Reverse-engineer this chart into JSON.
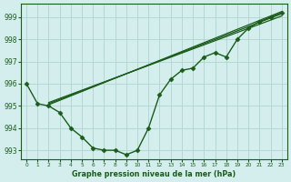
{
  "title": "Graphe pression niveau de la mer (hPa)",
  "background_color": "#d4eeed",
  "grid_color": "#b0d4d0",
  "line_color": "#1a5c1a",
  "xlim": [
    -0.5,
    23.5
  ],
  "ylim": [
    992.6,
    999.6
  ],
  "yticks": [
    993,
    994,
    995,
    996,
    997,
    998,
    999
  ],
  "xticks": [
    0,
    1,
    2,
    3,
    4,
    5,
    6,
    7,
    8,
    9,
    10,
    11,
    12,
    13,
    14,
    15,
    16,
    17,
    18,
    19,
    20,
    21,
    22,
    23
  ],
  "lines": [
    {
      "x": [
        0,
        1,
        2,
        3,
        4,
        5,
        6,
        7,
        8,
        9,
        10,
        11,
        12,
        13,
        14,
        15,
        16,
        17,
        18,
        19,
        20,
        21,
        22,
        23
      ],
      "y": [
        996.0,
        995.1,
        995.0,
        994.7,
        994.0,
        993.6,
        993.1,
        993.0,
        993.0,
        992.8,
        993.0,
        994.0,
        995.5,
        996.2,
        996.6,
        996.7,
        997.2,
        997.4,
        997.2,
        998.0,
        998.5,
        998.8,
        999.0,
        999.2
      ],
      "marker": "D",
      "markersize": 2.5,
      "linewidth": 1.0
    },
    {
      "x": [
        2,
        23
      ],
      "y": [
        995.05,
        999.25
      ],
      "marker": null,
      "markersize": 0,
      "linewidth": 0.9
    },
    {
      "x": [
        2,
        23
      ],
      "y": [
        995.1,
        999.15
      ],
      "marker": null,
      "markersize": 0,
      "linewidth": 0.9
    },
    {
      "x": [
        2,
        23
      ],
      "y": [
        995.15,
        999.05
      ],
      "marker": null,
      "markersize": 0,
      "linewidth": 0.9
    }
  ]
}
